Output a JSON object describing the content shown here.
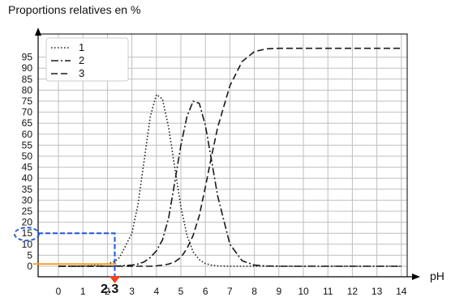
{
  "colors": {
    "grid": "#bfbfbf",
    "frame": "#000000",
    "curves": "#1a1a1a",
    "annotation_blue": "#1f56e0",
    "annotation_orange": "#f4a020",
    "annotation_red": "#f04418"
  },
  "chart_data": {
    "type": "line",
    "title": "",
    "ylabel": "Proportions relatives en %",
    "xlabel": "pH",
    "xlim": [
      -0.6,
      14.9
    ],
    "ylim": [
      -4,
      106
    ],
    "x_ticks": [
      0,
      1,
      2,
      3,
      4,
      5,
      6,
      7,
      8,
      9,
      10,
      11,
      12,
      13,
      14
    ],
    "x_tick_labels": [
      "0",
      "1",
      "2",
      "3",
      "4",
      "5",
      "6",
      "7",
      "8",
      "9",
      "10",
      "11",
      "12",
      "13",
      "14"
    ],
    "y_ticks": [
      0,
      5,
      10,
      15,
      20,
      25,
      30,
      35,
      40,
      45,
      50,
      55,
      60,
      65,
      70,
      75,
      80,
      85,
      90,
      95
    ],
    "y_tick_labels": [
      "0",
      "5",
      "10",
      "15",
      "20",
      "25",
      "30",
      "35",
      "40",
      "45",
      "50",
      "55",
      "60",
      "65",
      "70",
      "75",
      "80",
      "85",
      "90",
      "95"
    ],
    "grid": true,
    "legend_position": "top-left",
    "x": [
      0,
      0.5,
      1,
      1.5,
      2,
      2.3,
      2.5,
      3,
      3.25,
      3.5,
      3.75,
      4,
      4.25,
      4.5,
      4.75,
      5,
      5.25,
      5.5,
      5.75,
      6,
      6.25,
      6.5,
      7,
      7.5,
      8,
      8.5,
      9,
      10,
      11,
      12,
      13,
      14
    ],
    "series": [
      {
        "name": "1",
        "style": "dotted",
        "values": [
          0,
          0,
          0.1,
          0.4,
          1.1,
          2.2,
          4,
          15,
          28,
          48,
          68,
          78,
          76,
          63,
          45,
          27,
          14,
          6.5,
          3,
          1.2,
          0.5,
          0.2,
          0,
          0,
          0,
          0,
          0,
          0,
          0,
          0,
          0,
          0
        ]
      },
      {
        "name": "2",
        "style": "dashdot",
        "values": [
          0,
          0,
          0,
          0,
          0,
          0.1,
          0.2,
          0.5,
          1,
          2,
          4,
          7,
          12,
          22,
          38,
          55,
          68,
          75,
          74,
          64,
          48,
          32,
          10,
          2.5,
          0.5,
          0.1,
          0,
          0,
          0,
          0,
          0,
          0
        ]
      },
      {
        "name": "3",
        "style": "dashed",
        "values": [
          0,
          0,
          0,
          0,
          0,
          0,
          0,
          0,
          0,
          0,
          0,
          0.2,
          0.5,
          1,
          2,
          4,
          8,
          14,
          23,
          36,
          50,
          63,
          82,
          93,
          97.5,
          98.8,
          99,
          99,
          99,
          99,
          99,
          99
        ]
      }
    ],
    "annotations": {
      "highlight_x": 2.3,
      "highlight_x_label": "2.3",
      "highlight_y": 15,
      "highlight_y_label": "15",
      "orange_level_y": 1
    }
  }
}
